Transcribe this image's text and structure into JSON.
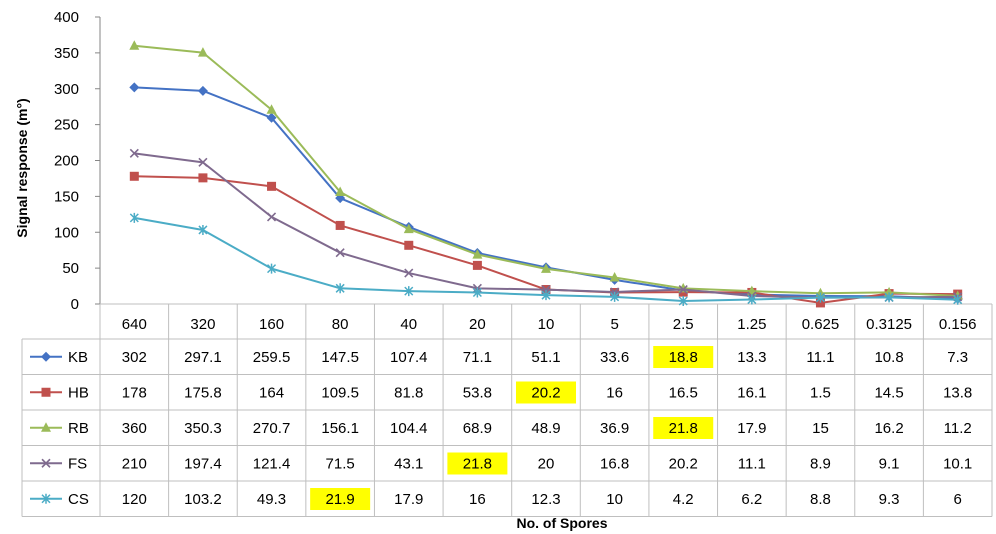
{
  "chart_data": {
    "type": "line",
    "title": "",
    "xlabel": "No. of Spores",
    "ylabel": "Signal response (m°)",
    "ylim": [
      0,
      400
    ],
    "yticks": [
      0,
      50,
      100,
      150,
      200,
      250,
      300,
      350,
      400
    ],
    "grid": false,
    "legend": "data-table",
    "categories": [
      "640",
      "320",
      "160",
      "80",
      "40",
      "20",
      "10",
      "5",
      "2.5",
      "1.25",
      "0.625",
      "0.3125",
      "0.156"
    ],
    "series": [
      {
        "name": "KB",
        "color": "#4472C4",
        "marker": "diamond",
        "values": [
          302,
          297.1,
          259.5,
          147.5,
          107.4,
          71.1,
          51.1,
          33.6,
          18.8,
          13.3,
          11.1,
          10.8,
          7.3
        ],
        "labels": [
          "302",
          "297.1",
          "259.5",
          "147.5",
          "107.4",
          "71.1",
          "51.1",
          "33.6",
          "18.8",
          "13.3",
          "11.1",
          "10.8",
          "7.3"
        ],
        "highlight": [
          8
        ]
      },
      {
        "name": "HB",
        "color": "#C0504D",
        "marker": "square",
        "values": [
          178,
          175.8,
          164,
          109.5,
          81.8,
          53.8,
          20.2,
          16,
          16.5,
          16.1,
          1.5,
          14.5,
          13.8
        ],
        "labels": [
          "178",
          "175.8",
          "164",
          "109.5",
          "81.8",
          "53.8",
          "20.2",
          "16",
          "16.5",
          "16.1",
          "1.5",
          "14.5",
          "13.8"
        ],
        "highlight": [
          6
        ]
      },
      {
        "name": "RB",
        "color": "#9BBB59",
        "marker": "triangle",
        "values": [
          360,
          350.3,
          270.7,
          156.1,
          104.4,
          68.9,
          48.9,
          36.9,
          21.8,
          17.9,
          15,
          16.2,
          11.2
        ],
        "labels": [
          "360",
          "350.3",
          "270.7",
          "156.1",
          "104.4",
          "68.9",
          "48.9",
          "36.9",
          "21.8",
          "17.9",
          "15",
          "16.2",
          "11.2"
        ],
        "highlight": [
          8
        ]
      },
      {
        "name": "FS",
        "color": "#7F6A8E",
        "marker": "x",
        "values": [
          210,
          197.4,
          121.4,
          71.5,
          43.1,
          21.8,
          20,
          16.8,
          20.2,
          11.1,
          8.9,
          9.1,
          10.1
        ],
        "labels": [
          "210",
          "197.4",
          "121.4",
          "71.5",
          "43.1",
          "21.8",
          "20",
          "16.8",
          "20.2",
          "11.1",
          "8.9",
          "9.1",
          "10.1"
        ],
        "highlight": [
          5
        ]
      },
      {
        "name": "CS",
        "color": "#4BACC6",
        "marker": "star",
        "values": [
          120,
          103.2,
          49.3,
          21.9,
          17.9,
          16,
          12.3,
          10,
          4.2,
          6.2,
          8.8,
          9.3,
          6
        ],
        "labels": [
          "120",
          "103.2",
          "49.3",
          "21.9",
          "17.9",
          "16",
          "12.3",
          "10",
          "4.2",
          "6.2",
          "8.8",
          "9.3",
          "6"
        ],
        "highlight": [
          3
        ]
      }
    ],
    "highlight_color": "#FFFF00"
  }
}
